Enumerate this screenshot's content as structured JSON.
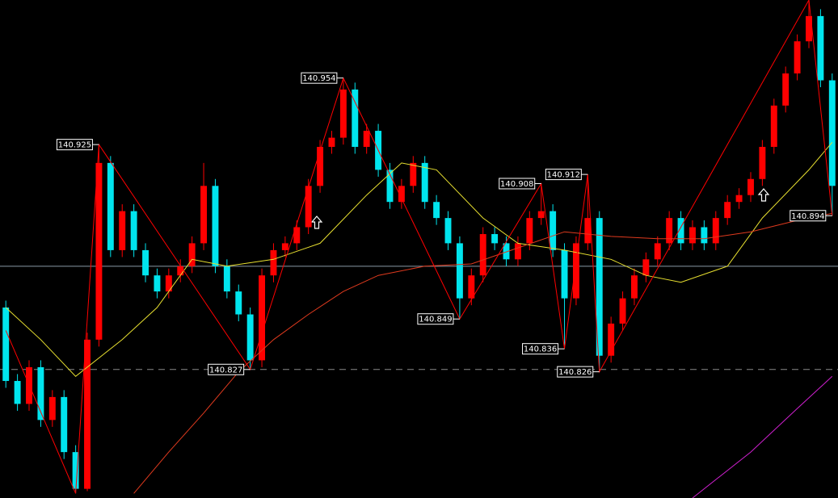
{
  "chart_data": {
    "type": "candlestick",
    "xlim": [
      -0.5,
      71.5
    ],
    "ylim": [
      140.771,
      140.988
    ],
    "up_color": "#ff0000",
    "down_color": "#00e5ee",
    "ohlc": [
      [
        140.854,
        140.857,
        140.819,
        140.822
      ],
      [
        140.822,
        140.825,
        140.809,
        140.812
      ],
      [
        140.812,
        140.831,
        140.809,
        140.828
      ],
      [
        140.828,
        140.831,
        140.802,
        140.805
      ],
      [
        140.805,
        140.818,
        140.802,
        140.815
      ],
      [
        140.815,
        140.818,
        140.788,
        140.791
      ],
      [
        140.791,
        140.794,
        140.773,
        140.775
      ],
      [
        140.775,
        140.843,
        140.774,
        140.84
      ],
      [
        140.84,
        140.925,
        140.837,
        140.917
      ],
      [
        140.917,
        140.92,
        140.876,
        140.879
      ],
      [
        140.879,
        140.899,
        140.876,
        140.896
      ],
      [
        140.896,
        140.899,
        140.876,
        140.879
      ],
      [
        140.879,
        140.882,
        140.865,
        140.868
      ],
      [
        140.868,
        140.871,
        140.858,
        140.861
      ],
      [
        140.861,
        140.871,
        140.858,
        140.868
      ],
      [
        140.868,
        140.875,
        140.865,
        140.872
      ],
      [
        140.872,
        140.885,
        140.869,
        140.882
      ],
      [
        140.882,
        140.917,
        140.879,
        140.907
      ],
      [
        140.907,
        140.91,
        140.869,
        140.872
      ],
      [
        140.872,
        140.875,
        140.858,
        140.861
      ],
      [
        140.861,
        140.864,
        140.848,
        140.851
      ],
      [
        140.851,
        140.854,
        140.827,
        140.831
      ],
      [
        140.831,
        140.871,
        140.828,
        140.868
      ],
      [
        140.868,
        140.882,
        140.865,
        140.879
      ],
      [
        140.879,
        140.885,
        140.876,
        140.882
      ],
      [
        140.882,
        140.892,
        140.879,
        140.889
      ],
      [
        140.889,
        140.91,
        140.886,
        140.907
      ],
      [
        140.907,
        140.927,
        140.904,
        140.924
      ],
      [
        140.924,
        140.931,
        140.921,
        140.928
      ],
      [
        140.928,
        140.954,
        140.925,
        140.949
      ],
      [
        140.949,
        140.952,
        140.921,
        140.924
      ],
      [
        140.924,
        140.934,
        140.921,
        140.931
      ],
      [
        140.931,
        140.934,
        140.911,
        140.914
      ],
      [
        140.914,
        140.917,
        140.897,
        140.9
      ],
      [
        140.9,
        140.91,
        140.897,
        140.907
      ],
      [
        140.907,
        140.92,
        140.904,
        140.917
      ],
      [
        140.917,
        140.92,
        140.897,
        140.9
      ],
      [
        140.9,
        140.903,
        140.89,
        140.893
      ],
      [
        140.893,
        140.896,
        140.879,
        140.882
      ],
      [
        140.882,
        140.885,
        140.849,
        140.858
      ],
      [
        140.858,
        140.871,
        140.855,
        140.868
      ],
      [
        140.868,
        140.889,
        140.865,
        140.886
      ],
      [
        140.886,
        140.889,
        140.879,
        140.882
      ],
      [
        140.882,
        140.885,
        140.872,
        140.875
      ],
      [
        140.875,
        140.885,
        140.872,
        140.882
      ],
      [
        140.882,
        140.896,
        140.879,
        140.893
      ],
      [
        140.893,
        140.908,
        140.89,
        140.896
      ],
      [
        140.896,
        140.899,
        140.876,
        140.879
      ],
      [
        140.879,
        140.882,
        140.836,
        140.858
      ],
      [
        140.858,
        140.885,
        140.855,
        140.882
      ],
      [
        140.882,
        140.912,
        140.879,
        140.893
      ],
      [
        140.893,
        140.896,
        140.826,
        140.833
      ],
      [
        140.833,
        140.85,
        140.83,
        140.847
      ],
      [
        140.847,
        140.861,
        140.844,
        140.858
      ],
      [
        140.858,
        140.871,
        140.855,
        140.868
      ],
      [
        140.868,
        140.878,
        140.865,
        140.875
      ],
      [
        140.875,
        140.885,
        140.872,
        140.882
      ],
      [
        140.882,
        140.896,
        140.879,
        140.893
      ],
      [
        140.893,
        140.896,
        140.879,
        140.882
      ],
      [
        140.882,
        140.892,
        140.879,
        140.889
      ],
      [
        140.889,
        140.892,
        140.879,
        140.882
      ],
      [
        140.882,
        140.896,
        140.879,
        140.893
      ],
      [
        140.893,
        140.903,
        140.89,
        140.9
      ],
      [
        140.9,
        140.906,
        140.897,
        140.903
      ],
      [
        140.903,
        140.913,
        140.9,
        140.91
      ],
      [
        140.91,
        140.927,
        140.907,
        140.924
      ],
      [
        140.924,
        140.945,
        140.921,
        140.942
      ],
      [
        140.942,
        140.959,
        140.939,
        140.956
      ],
      [
        140.956,
        140.973,
        140.953,
        140.97
      ],
      [
        140.97,
        140.988,
        140.967,
        140.981
      ],
      [
        140.981,
        140.984,
        140.95,
        140.953
      ],
      [
        140.953,
        140.956,
        140.894,
        140.907
      ]
    ],
    "lines": [
      {
        "color": "#e8e030",
        "x": [
          0,
          3,
          6,
          10,
          13,
          16,
          19,
          23,
          27,
          31,
          34,
          37,
          41,
          44,
          48,
          52,
          55,
          58,
          62,
          65,
          69,
          71
        ],
        "values": [
          140.854,
          140.84,
          140.824,
          140.84,
          140.854,
          140.875,
          140.872,
          140.875,
          140.882,
          140.903,
          140.917,
          140.914,
          140.893,
          140.882,
          140.879,
          140.875,
          140.868,
          140.865,
          140.872,
          140.893,
          140.914,
          140.926
        ]
      },
      {
        "color": "#e03a1e",
        "x": [
          11,
          14,
          17,
          20,
          23,
          26,
          29,
          32,
          36,
          40,
          44,
          48,
          52,
          56,
          60,
          64,
          68,
          71
        ],
        "values": [
          140.773,
          140.791,
          140.808,
          140.826,
          140.84,
          140.851,
          140.861,
          140.868,
          140.872,
          140.873,
          140.88,
          140.887,
          140.885,
          140.884,
          140.884,
          140.887,
          140.892,
          140.895
        ]
      },
      {
        "color": "#d020d0",
        "x": [
          59,
          64,
          68,
          71
        ],
        "values": [
          140.771,
          140.791,
          140.81,
          140.824
        ]
      },
      {
        "color": "#ff0000",
        "x": [
          0,
          6,
          8,
          21,
          29,
          39,
          46,
          48,
          50,
          51,
          69,
          71
        ],
        "values": [
          140.844,
          140.773,
          140.925,
          140.827,
          140.954,
          140.849,
          140.908,
          140.836,
          140.912,
          140.826,
          140.988,
          140.894
        ]
      }
    ],
    "hlines": [
      {
        "value": 140.872,
        "color": "#8a9aa6",
        "dashed": false
      },
      {
        "value": 140.827,
        "color": "#8a8a8a",
        "dashed": true
      }
    ],
    "labels": [
      {
        "x": 8,
        "value": 140.925
      },
      {
        "x": 21,
        "value": 140.827
      },
      {
        "x": 29,
        "value": 140.954
      },
      {
        "x": 39,
        "value": 140.849
      },
      {
        "x": 46,
        "value": 140.908
      },
      {
        "x": 48,
        "value": 140.836
      },
      {
        "x": 50,
        "value": 140.912
      },
      {
        "x": 51,
        "value": 140.826
      },
      {
        "x": 71,
        "value": 140.894
      }
    ]
  }
}
